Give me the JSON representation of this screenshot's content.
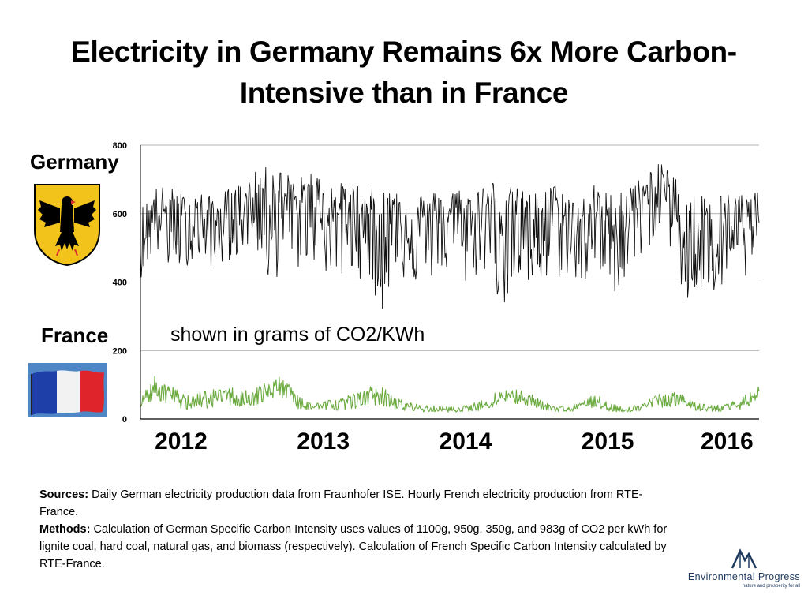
{
  "title": "Electricity in Germany Remains 6x More Carbon-Intensive than in France",
  "labels": {
    "germany": "Germany",
    "france": "France",
    "unit_note": "shown in grams of CO2/KWh"
  },
  "chart_data": {
    "type": "line",
    "ylim": [
      0,
      800
    ],
    "yticks": [
      "0",
      "200",
      "400",
      "600",
      "800"
    ],
    "grid": true,
    "x_range": [
      2011.7,
      2016.05
    ],
    "x_year_labels": [
      {
        "label": "2012",
        "x": 2012.0
      },
      {
        "label": "2013",
        "x": 2013.0
      },
      {
        "label": "2014",
        "x": 2014.0
      },
      {
        "label": "2015",
        "x": 2015.0
      },
      {
        "label": "2016",
        "x": 2016.0
      }
    ],
    "series": [
      {
        "name": "Germany",
        "color": "#111111",
        "x": [
          2011.7,
          2011.8,
          2011.9,
          2012.0,
          2012.1,
          2012.2,
          2012.3,
          2012.4,
          2012.5,
          2012.6,
          2012.7,
          2012.8,
          2012.9,
          2013.0,
          2013.1,
          2013.2,
          2013.3,
          2013.4,
          2013.5,
          2013.6,
          2013.7,
          2013.8,
          2013.9,
          2014.0,
          2014.1,
          2014.2,
          2014.3,
          2014.4,
          2014.5,
          2014.6,
          2014.7,
          2014.8,
          2014.9,
          2015.0,
          2015.1,
          2015.2,
          2015.3,
          2015.4,
          2015.5,
          2015.6,
          2015.7,
          2015.8,
          2015.9,
          2016.0,
          2016.05
        ],
        "values": [
          520,
          610,
          600,
          570,
          590,
          560,
          585,
          600,
          640,
          665,
          640,
          610,
          650,
          620,
          600,
          610,
          590,
          560,
          600,
          580,
          575,
          590,
          600,
          560,
          610,
          625,
          600,
          590,
          570,
          620,
          560,
          540,
          600,
          560,
          590,
          620,
          660,
          690,
          560,
          540,
          580,
          560,
          570,
          540,
          610
        ],
        "min_values": [
          410,
          490,
          430,
          440,
          470,
          430,
          460,
          480,
          520,
          370,
          440,
          430,
          470,
          420,
          400,
          420,
          400,
          310,
          440,
          380,
          400,
          420,
          430,
          380,
          440,
          360,
          300,
          380,
          360,
          400,
          420,
          380,
          430,
          350,
          400,
          450,
          520,
          560,
          320,
          340,
          360,
          350,
          400,
          400,
          470
        ],
        "max_values": [
          620,
          680,
          680,
          660,
          670,
          650,
          670,
          690,
          720,
          740,
          730,
          700,
          730,
          700,
          690,
          690,
          680,
          670,
          690,
          670,
          660,
          670,
          680,
          670,
          690,
          700,
          680,
          670,
          660,
          690,
          670,
          650,
          690,
          660,
          690,
          700,
          740,
          750,
          690,
          660,
          670,
          660,
          670,
          660,
          690
        ]
      },
      {
        "name": "France",
        "color": "#6aaa3f",
        "x": [
          2011.7,
          2011.8,
          2011.9,
          2012.0,
          2012.1,
          2012.2,
          2012.3,
          2012.4,
          2012.5,
          2012.6,
          2012.7,
          2012.8,
          2012.9,
          2013.0,
          2013.1,
          2013.2,
          2013.3,
          2013.4,
          2013.5,
          2013.6,
          2013.7,
          2013.8,
          2013.9,
          2014.0,
          2014.1,
          2014.2,
          2014.3,
          2014.4,
          2014.5,
          2014.6,
          2014.7,
          2014.8,
          2014.9,
          2015.0,
          2015.1,
          2015.2,
          2015.3,
          2015.4,
          2015.5,
          2015.6,
          2015.7,
          2015.8,
          2015.9,
          2016.0,
          2016.05
        ],
        "values": [
          40,
          95,
          75,
          50,
          55,
          60,
          70,
          65,
          60,
          85,
          95,
          50,
          35,
          40,
          45,
          55,
          75,
          70,
          40,
          35,
          30,
          28,
          26,
          30,
          40,
          60,
          70,
          65,
          45,
          30,
          28,
          35,
          55,
          30,
          26,
          30,
          50,
          60,
          55,
          35,
          30,
          28,
          40,
          60,
          85
        ],
        "min_values": [
          30,
          60,
          40,
          25,
          30,
          30,
          40,
          35,
          35,
          50,
          60,
          30,
          22,
          25,
          25,
          30,
          40,
          40,
          25,
          22,
          20,
          20,
          20,
          22,
          25,
          35,
          45,
          40,
          28,
          22,
          20,
          22,
          35,
          22,
          20,
          22,
          30,
          35,
          32,
          25,
          22,
          20,
          25,
          40,
          65
        ],
        "max_values": [
          60,
          125,
          100,
          75,
          80,
          85,
          95,
          90,
          90,
          115,
          125,
          75,
          50,
          55,
          60,
          75,
          95,
          95,
          60,
          50,
          40,
          38,
          36,
          40,
          55,
          80,
          90,
          85,
          60,
          40,
          38,
          50,
          75,
          45,
          36,
          42,
          70,
          80,
          75,
          50,
          45,
          40,
          60,
          80,
          100
        ]
      }
    ]
  },
  "sources": {
    "sources_label": "Sources:",
    "sources_text": " Daily German electricity production data from Fraunhofer ISE. Hourly French electricity production from RTE-France.",
    "methods_label": "Methods:",
    "methods_text": " Calculation of German Specific Carbon Intensity uses values of 1100g, 950g, 350g, and 983g of CO2 per kWh for lignite coal, hard coal, natural gas, and biomass (respectively). Calculation of French Specific Carbon Intensity calculated by RTE-France."
  },
  "logo": {
    "name": "Environmental Progress",
    "tagline": "nature and prosperity for all",
    "color": "#1f3a5f"
  },
  "colors": {
    "flag_blue": "#1f3fa8",
    "flag_white": "#f2f2f2",
    "flag_red": "#e0242b",
    "flag_sky": "#4f86c6",
    "eagle_gold": "#f2c31b",
    "eagle_red": "#d62d2d"
  }
}
